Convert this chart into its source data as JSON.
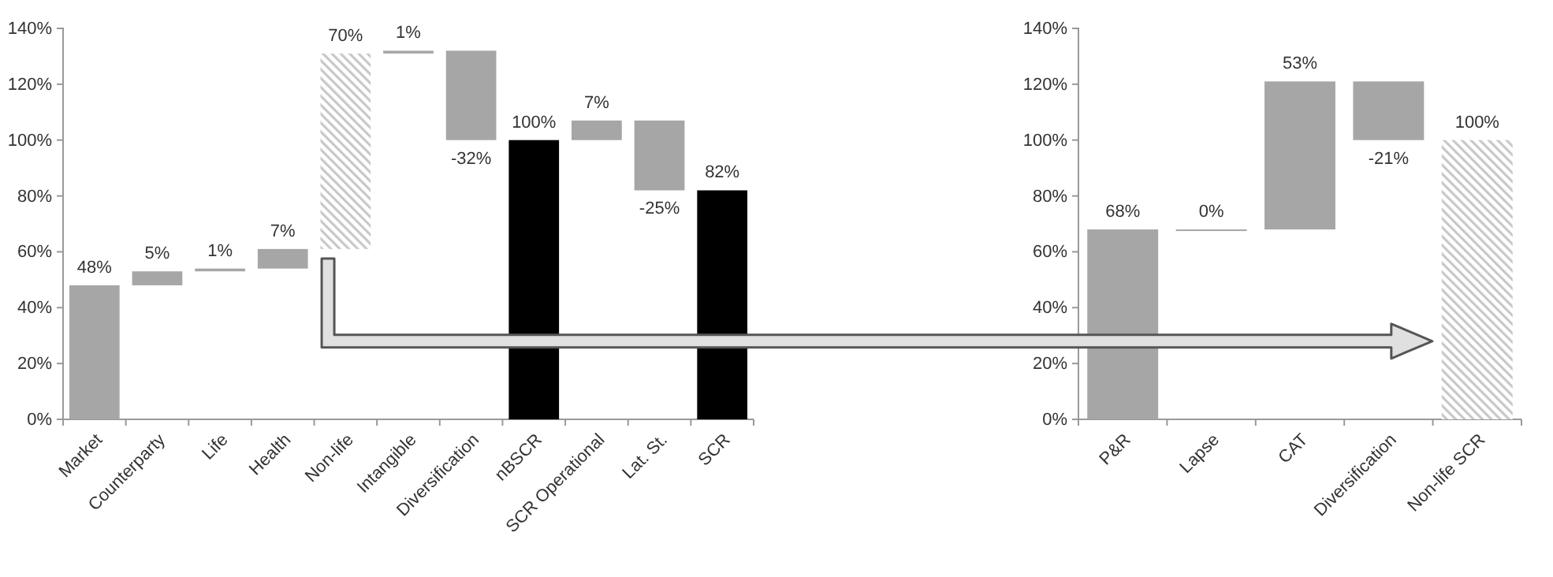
{
  "chart_data": [
    {
      "type": "bar",
      "categories": [
        "Market",
        "Counterparty",
        "Life",
        "Health",
        "Non-life",
        "Intangible",
        "Diversification",
        "nBSCR",
        "SCR Operational",
        "Lat. St.",
        "SCR"
      ],
      "values": [
        48,
        5,
        1,
        7,
        70,
        1,
        -32,
        100,
        7,
        -25,
        82
      ],
      "base": [
        0,
        48,
        53,
        54,
        61,
        131,
        132,
        0,
        100,
        107,
        0
      ],
      "colors": [
        "#a6a6a6",
        "#a6a6a6",
        "#a6a6a6",
        "#a6a6a6",
        "#c8c8c8",
        "#a6a6a6",
        "#a6a6a6",
        "#000000",
        "#a6a6a6",
        "#a6a6a6",
        "#000000"
      ],
      "ylim": [
        0,
        140
      ],
      "yticks": [
        {
          "value": 0,
          "label": "0%"
        },
        {
          "value": 20,
          "label": "20%"
        },
        {
          "value": 40,
          "label": "40%"
        },
        {
          "value": 60,
          "label": "60%"
        },
        {
          "value": 80,
          "label": "80%"
        },
        {
          "value": 100,
          "label": "100%"
        },
        {
          "value": 120,
          "label": "120%"
        },
        {
          "value": 140,
          "label": "140%"
        }
      ],
      "value_labels": [
        "48%",
        "5%",
        "1%",
        "7%",
        "70%",
        "1%",
        "-32%",
        "100%",
        "7%",
        "-25%",
        "82%"
      ],
      "grid": false
    },
    {
      "type": "bar",
      "categories": [
        "P&R",
        "Lapse",
        "CAT",
        "Diversification",
        "Non-life SCR"
      ],
      "values": [
        68,
        0,
        53,
        -21,
        100
      ],
      "base": [
        0,
        68,
        68,
        121,
        0
      ],
      "colors": [
        "#a6a6a6",
        "#a6a6a6",
        "#a6a6a6",
        "#a6a6a6",
        "#c8c8c8"
      ],
      "ylim": [
        0,
        140
      ],
      "yticks": [
        {
          "value": 0,
          "label": "0%"
        },
        {
          "value": 20,
          "label": "20%"
        },
        {
          "value": 40,
          "label": "40%"
        },
        {
          "value": 60,
          "label": "60%"
        },
        {
          "value": 80,
          "label": "80%"
        },
        {
          "value": 100,
          "label": "100%"
        },
        {
          "value": 120,
          "label": "120%"
        },
        {
          "value": 140,
          "label": "140%"
        }
      ],
      "value_labels": [
        "68%",
        "0%",
        "53%",
        "-21%",
        "100%"
      ],
      "grid": false
    }
  ]
}
